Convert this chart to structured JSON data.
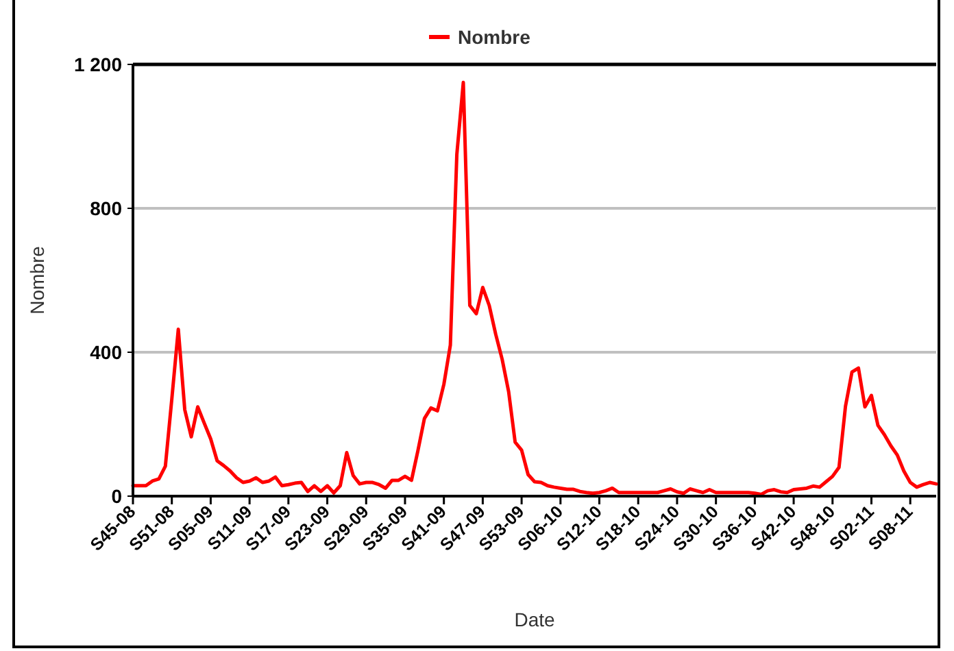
{
  "chart_data": {
    "type": "line",
    "xlabel": "Date",
    "ylabel": "Nombre",
    "categories": [
      "S45-08",
      null,
      null,
      null,
      null,
      null,
      "S51-08",
      null,
      null,
      null,
      null,
      null,
      "S05-09",
      null,
      null,
      null,
      null,
      null,
      "S11-09",
      null,
      null,
      null,
      null,
      null,
      "S17-09",
      null,
      null,
      null,
      null,
      null,
      "S23-09",
      null,
      null,
      null,
      null,
      null,
      "S29-09",
      null,
      null,
      null,
      null,
      null,
      "S35-09",
      null,
      null,
      null,
      null,
      null,
      "S41-09",
      null,
      null,
      null,
      null,
      null,
      "S47-09",
      null,
      null,
      null,
      null,
      null,
      "S53-09",
      null,
      null,
      null,
      null,
      null,
      "S06-10",
      null,
      null,
      null,
      null,
      null,
      "S12-10",
      null,
      null,
      null,
      null,
      null,
      "S18-10",
      null,
      null,
      null,
      null,
      null,
      "S24-10",
      null,
      null,
      null,
      null,
      null,
      "S30-10",
      null,
      null,
      null,
      null,
      null,
      "S36-10",
      null,
      null,
      null,
      null,
      null,
      "S42-10",
      null,
      null,
      null,
      null,
      null,
      "S48-10",
      null,
      null,
      null,
      null,
      null,
      "S02-11",
      null,
      null,
      null,
      null,
      null,
      "S08-11",
      null,
      null,
      null,
      null
    ],
    "series": [
      {
        "name": "Nombre",
        "color": "#ff0000",
        "values": [
          29,
          29,
          29,
          42,
          48,
          83,
          270,
          464,
          240,
          165,
          248,
          203,
          159,
          98,
          85,
          70,
          51,
          38,
          42,
          51,
          38,
          42,
          53,
          29,
          32,
          36,
          38,
          13,
          29,
          13,
          29,
          9,
          29,
          121,
          57,
          34,
          38,
          38,
          32,
          22,
          44,
          44,
          55,
          44,
          127,
          216,
          245,
          237,
          311,
          420,
          950,
          1150,
          530,
          507,
          580,
          530,
          450,
          380,
          290,
          150,
          128,
          60,
          40,
          38,
          29,
          25,
          22,
          19,
          19,
          13,
          10,
          8,
          10,
          15,
          22,
          10,
          10,
          10,
          10,
          10,
          10,
          10,
          15,
          20,
          12,
          8,
          20,
          15,
          10,
          18,
          10,
          10,
          10,
          10,
          10,
          10,
          8,
          5,
          15,
          18,
          12,
          10,
          18,
          20,
          22,
          28,
          25,
          40,
          55,
          80,
          250,
          345,
          356,
          248,
          280,
          197,
          171,
          140,
          114,
          70,
          38,
          25,
          32,
          38,
          34
        ]
      }
    ],
    "ylim": [
      0,
      1200
    ],
    "yticks": [
      0,
      400,
      800,
      {
        "value": 1200,
        "label": "1 200"
      }
    ],
    "grid": "y",
    "legend": "top",
    "marker": "none",
    "line_style": "solid"
  }
}
